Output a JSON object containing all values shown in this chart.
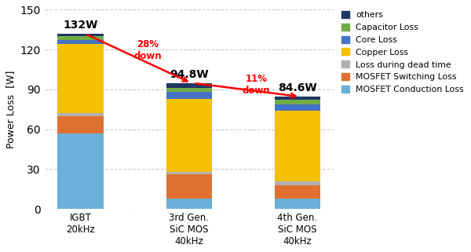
{
  "categories": [
    "IGBT\n20kHz",
    "3rd Gen.\nSiC MOS\n40kHz",
    "4th Gen.\nSiC MOS\n40kHz"
  ],
  "totals": [
    132,
    94.8,
    84.6
  ],
  "stack_order": [
    "MOSFET Conduction Loss",
    "MOSFET Switching Loss",
    "Loss during dead time",
    "Copper Loss",
    "Core Loss",
    "Capacitor Loss",
    "others"
  ],
  "segments": {
    "MOSFET Conduction Loss": [
      57,
      8,
      8
    ],
    "MOSFET Switching Loss": [
      13,
      18,
      10
    ],
    "Loss during dead time": [
      2,
      2,
      3
    ],
    "Copper Loss": [
      52,
      55,
      53
    ],
    "Core Loss": [
      3,
      5,
      5
    ],
    "Capacitor Loss": [
      3,
      3,
      3
    ],
    "others": [
      2,
      3.8,
      2.6
    ]
  },
  "colors": {
    "MOSFET Conduction Loss": "#6ab0d8",
    "MOSFET Switching Loss": "#e07030",
    "Loss during dead time": "#b0b0b0",
    "Copper Loss": "#f5c000",
    "Core Loss": "#4472c4",
    "Capacitor Loss": "#70ad47",
    "others": "#1f3864"
  },
  "legend_order": [
    "others",
    "Capacitor Loss",
    "Core Loss",
    "Copper Loss",
    "Loss during dead time",
    "MOSFET Switching Loss",
    "MOSFET Conduction Loss"
  ],
  "ylabel": "Power Loss  [W]",
  "ylim": [
    0,
    150
  ],
  "yticks": [
    0,
    30,
    60,
    90,
    120,
    150
  ],
  "arrow1_text": "28%\ndown",
  "arrow2_text": "11%\ndown",
  "total_labels": [
    "132W",
    "94.8W",
    "84.6W"
  ],
  "background_color": "#ffffff",
  "grid_color": "#cccccc",
  "bar_width": 0.42
}
